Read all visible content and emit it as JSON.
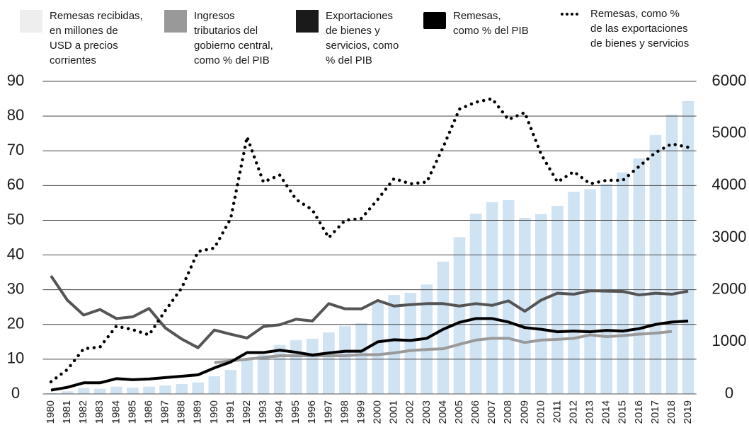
{
  "chart_data": {
    "type": "bar_line",
    "categories": [
      "1980",
      "1981",
      "1982",
      "1983",
      "1984",
      "1985",
      "1986",
      "1987",
      "1988",
      "1989",
      "1990",
      "1991",
      "1992",
      "1993",
      "1994",
      "1995",
      "1996",
      "1997",
      "1998",
      "1999",
      "2000",
      "2001",
      "2002",
      "2003",
      "2004",
      "2005",
      "2006",
      "2007",
      "2008",
      "2009",
      "2010",
      "2011",
      "2012",
      "2013",
      "2014",
      "2015",
      "2016",
      "2017",
      "2018",
      "2019"
    ],
    "series": [
      {
        "name": "Remesas recibidas,\nen millones de\nUSD a precios\ncorrientes",
        "color": "#cfe3f3",
        "kind": "bar",
        "axis": "y2",
        "values": [
          15,
          50,
          110,
          100,
          140,
          120,
          140,
          160,
          190,
          220,
          340,
          460,
          670,
          750,
          940,
          1030,
          1060,
          1180,
          1300,
          1360,
          1760,
          1900,
          1940,
          2100,
          2540,
          3010,
          3460,
          3680,
          3720,
          3380,
          3450,
          3610,
          3880,
          3930,
          4030,
          4250,
          4520,
          4970,
          5360,
          5620
        ]
      },
      {
        "name": "Ingresos\ntributarios del\ngobierno central,\ncomo  % del PIB",
        "color": "#9a9a9a",
        "kind": "line",
        "values": [
          null,
          null,
          null,
          null,
          null,
          null,
          null,
          null,
          null,
          null,
          9,
          9.5,
          10,
          10.5,
          11,
          11,
          11,
          11,
          11,
          11.3,
          11.3,
          11.8,
          12.5,
          12.8,
          13,
          14.3,
          15.5,
          16,
          16,
          14.8,
          15.5,
          15.7,
          16,
          17,
          16.5,
          16.8,
          17.2,
          17.5,
          18,
          null
        ]
      },
      {
        "name": "Exportaciones\nde bienes y\nservicios, como\n% del PIB",
        "color": "#555555",
        "kind": "line",
        "values": [
          34,
          27,
          22.7,
          24.3,
          21.7,
          22.2,
          24.6,
          19,
          15.8,
          13.3,
          18.4,
          17.2,
          16.1,
          19.4,
          19.9,
          21.5,
          21,
          26,
          24.5,
          24.5,
          26.9,
          25.3,
          25.7,
          26,
          26,
          25.3,
          26,
          25.5,
          26.8,
          23.8,
          27,
          29,
          28.7,
          29.7,
          29.6,
          29.5,
          28.5,
          29,
          28.7,
          29.6
        ]
      },
      {
        "name": "Remesas,\ncomo % del  PIB",
        "color": "#000000",
        "kind": "line",
        "values": [
          1.1,
          1.9,
          3.2,
          3.2,
          4.4,
          4.1,
          4.3,
          4.7,
          5.1,
          5.5,
          7.5,
          9.2,
          11.9,
          11.9,
          12.6,
          12,
          11.2,
          11.8,
          12.3,
          12.3,
          15,
          15.6,
          15.4,
          16,
          18.6,
          20.6,
          21.7,
          21.7,
          20.7,
          19.1,
          18.6,
          17.9,
          18.1,
          17.9,
          18.3,
          18.1,
          18.8,
          20,
          20.7,
          21
        ]
      },
      {
        "name": "Remesas, como %\nde las exportaciones\nde bienes y servicios",
        "color": "#000000",
        "kind": "dotted",
        "values": [
          3.5,
          7,
          13,
          13.5,
          19.5,
          18.5,
          17,
          24,
          30.5,
          41,
          42,
          50.5,
          74,
          61,
          63,
          56,
          53,
          45,
          50,
          50.5,
          56,
          62,
          60.5,
          61,
          71,
          82,
          84,
          85,
          79,
          81,
          69,
          61,
          64,
          60.5,
          61.5,
          61.5,
          65.5,
          69.5,
          72,
          71
        ]
      }
    ],
    "ylim": [
      0,
      90
    ],
    "yticks": [
      0,
      10,
      20,
      30,
      40,
      50,
      60,
      70,
      80,
      90
    ],
    "y2lim": [
      0,
      6000
    ],
    "y2ticks": [
      0,
      1000,
      2000,
      3000,
      4000,
      5000,
      6000
    ],
    "grid": true
  }
}
